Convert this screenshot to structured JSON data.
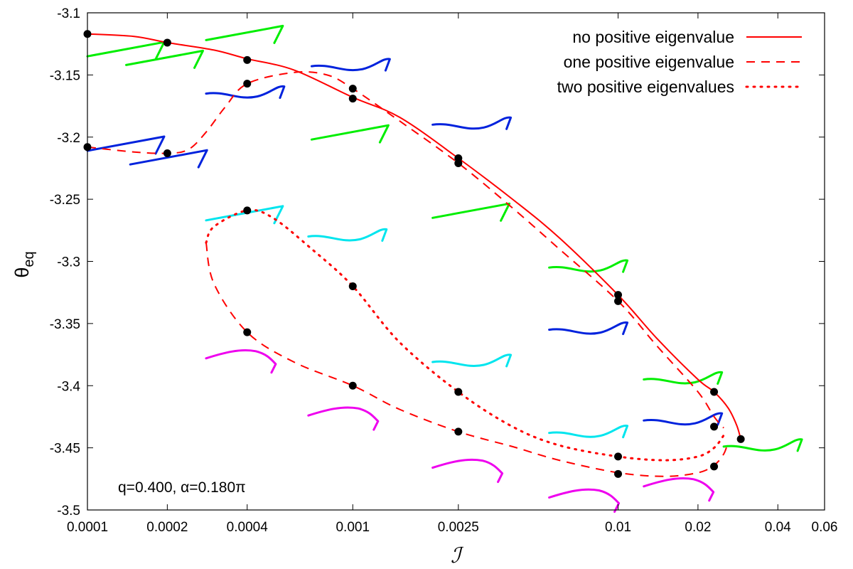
{
  "chart_data": {
    "type": "line",
    "x_scale": "log",
    "xlabel": "ℐ",
    "ylabel": {
      "main": "θ",
      "sub": "eq"
    },
    "xlim": [
      0.0001,
      0.06
    ],
    "ylim": [
      -3.5,
      -3.1
    ],
    "x_ticks": [
      0.0001,
      0.0002,
      0.0004,
      0.001,
      0.0025,
      0.01,
      0.02,
      0.04,
      0.06
    ],
    "x_tick_labels": [
      "0.0001",
      "0.0002",
      "0.0004",
      "0.001",
      "0.0025",
      "0.01",
      "0.02",
      "0.04",
      "0.06"
    ],
    "y_ticks": [
      -3.1,
      -3.15,
      -3.2,
      -3.25,
      -3.3,
      -3.35,
      -3.4,
      -3.45,
      -3.5
    ],
    "y_tick_labels": [
      "-3.1",
      "-3.15",
      "-3.2",
      "-3.25",
      "-3.3",
      "-3.35",
      "-3.4",
      "-3.45",
      "-3.5"
    ],
    "grid": false,
    "legend_position": "top-right",
    "annotation": "q=0.400, α=0.180π",
    "colors": {
      "curve": "#ff0000",
      "point": "#000000",
      "green": "#00ee00",
      "blue": "#0022dd",
      "cyan": "#00e5ee",
      "magenta": "#ee00ee"
    },
    "series": [
      {
        "name": "no positive eigenvalue",
        "style": "solid",
        "points": [
          [
            0.0001,
            -3.117
          ],
          [
            0.00015,
            -3.119
          ],
          [
            0.0002,
            -3.124
          ],
          [
            0.0003,
            -3.13
          ],
          [
            0.0004,
            -3.137
          ],
          [
            0.0006,
            -3.146
          ],
          [
            0.001,
            -3.168
          ],
          [
            0.0015,
            -3.184
          ],
          [
            0.0025,
            -3.217
          ],
          [
            0.004,
            -3.25
          ],
          [
            0.006,
            -3.281
          ],
          [
            0.01,
            -3.327
          ],
          [
            0.014,
            -3.362
          ],
          [
            0.02,
            -3.395
          ],
          [
            0.023,
            -3.405
          ],
          [
            0.026,
            -3.418
          ],
          [
            0.028,
            -3.432
          ],
          [
            0.029,
            -3.443
          ]
        ]
      },
      {
        "name": "one positive eigenvalue",
        "style": "dashed",
        "points": [
          [
            0.0001,
            -3.208
          ],
          [
            0.00015,
            -3.212
          ],
          [
            0.0002,
            -3.213
          ],
          [
            0.00024,
            -3.21
          ],
          [
            0.00028,
            -3.196
          ],
          [
            0.00033,
            -3.176
          ],
          [
            0.0004,
            -3.157
          ],
          [
            0.0006,
            -3.148
          ],
          [
            0.0008,
            -3.15
          ],
          [
            0.001,
            -3.161
          ],
          [
            0.0015,
            -3.187
          ],
          [
            0.0025,
            -3.221
          ],
          [
            0.004,
            -3.257
          ],
          [
            0.006,
            -3.29
          ],
          [
            0.01,
            -3.332
          ],
          [
            0.014,
            -3.368
          ],
          [
            0.02,
            -3.405
          ],
          [
            0.023,
            -3.425
          ],
          [
            0.025,
            -3.434
          ]
        ]
      },
      {
        "name": "",
        "style": "dashed",
        "points": [
          [
            0.00028,
            -3.285
          ],
          [
            0.0003,
            -3.318
          ],
          [
            0.0004,
            -3.357
          ],
          [
            0.0006,
            -3.381
          ],
          [
            0.001,
            -3.4
          ],
          [
            0.0015,
            -3.419
          ],
          [
            0.0025,
            -3.437
          ],
          [
            0.004,
            -3.449
          ],
          [
            0.006,
            -3.46
          ],
          [
            0.01,
            -3.47
          ],
          [
            0.015,
            -3.473
          ],
          [
            0.02,
            -3.47
          ],
          [
            0.023,
            -3.464
          ],
          [
            0.025,
            -3.455
          ],
          [
            0.026,
            -3.445
          ]
        ]
      },
      {
        "name": "two positive eigenvalues",
        "style": "dotted",
        "points": [
          [
            0.00028,
            -3.285
          ],
          [
            0.0003,
            -3.272
          ],
          [
            0.0004,
            -3.259
          ],
          [
            0.0005,
            -3.265
          ],
          [
            0.0007,
            -3.29
          ],
          [
            0.001,
            -3.32
          ],
          [
            0.0015,
            -3.365
          ],
          [
            0.0025,
            -3.405
          ],
          [
            0.004,
            -3.433
          ],
          [
            0.006,
            -3.448
          ],
          [
            0.01,
            -3.457
          ],
          [
            0.015,
            -3.46
          ],
          [
            0.02,
            -3.457
          ],
          [
            0.023,
            -3.45
          ],
          [
            0.025,
            -3.44
          ]
        ]
      }
    ],
    "markers": [
      [
        0.0001,
        -3.117
      ],
      [
        0.0002,
        -3.124
      ],
      [
        0.0004,
        -3.138
      ],
      [
        0.0004,
        -3.157
      ],
      [
        0.0001,
        -3.208
      ],
      [
        0.0002,
        -3.213
      ],
      [
        0.001,
        -3.161
      ],
      [
        0.001,
        -3.169
      ],
      [
        0.0025,
        -3.217
      ],
      [
        0.0025,
        -3.221
      ],
      [
        0.0004,
        -3.259
      ],
      [
        0.001,
        -3.32
      ],
      [
        0.0004,
        -3.357
      ],
      [
        0.001,
        -3.4
      ],
      [
        0.0025,
        -3.405
      ],
      [
        0.0025,
        -3.437
      ],
      [
        0.01,
        -3.327
      ],
      [
        0.01,
        -3.332
      ],
      [
        0.023,
        -3.405
      ],
      [
        0.023,
        -3.433
      ],
      [
        0.023,
        -3.465
      ],
      [
        0.01,
        -3.457
      ],
      [
        0.01,
        -3.471
      ],
      [
        0.029,
        -3.443
      ]
    ],
    "insets": [
      {
        "color": "green",
        "x": 0.0001,
        "y": -3.135,
        "shape": "kink"
      },
      {
        "color": "green",
        "x": 0.00014,
        "y": -3.142,
        "shape": "kink"
      },
      {
        "color": "green",
        "x": 0.00028,
        "y": -3.122,
        "shape": "kink"
      },
      {
        "color": "green",
        "x": 0.0007,
        "y": -3.202,
        "shape": "kink"
      },
      {
        "color": "green",
        "x": 0.002,
        "y": -3.265,
        "shape": "kink"
      },
      {
        "color": "green",
        "x": 0.0055,
        "y": -3.305,
        "shape": "wave"
      },
      {
        "color": "green",
        "x": 0.0125,
        "y": -3.395,
        "shape": "wave"
      },
      {
        "color": "green",
        "x": 0.025,
        "y": -3.449,
        "shape": "wave"
      },
      {
        "color": "blue",
        "x": 0.0007,
        "y": -3.143,
        "shape": "wave"
      },
      {
        "color": "blue",
        "x": 0.00028,
        "y": -3.165,
        "shape": "wave"
      },
      {
        "color": "blue",
        "x": 0.0001,
        "y": -3.211,
        "shape": "kink"
      },
      {
        "color": "blue",
        "x": 0.000145,
        "y": -3.222,
        "shape": "kink"
      },
      {
        "color": "blue",
        "x": 0.002,
        "y": -3.19,
        "shape": "wave"
      },
      {
        "color": "blue",
        "x": 0.0055,
        "y": -3.355,
        "shape": "wave"
      },
      {
        "color": "blue",
        "x": 0.0125,
        "y": -3.428,
        "shape": "wave"
      },
      {
        "color": "cyan",
        "x": 0.00028,
        "y": -3.267,
        "shape": "kink"
      },
      {
        "color": "cyan",
        "x": 0.00068,
        "y": -3.28,
        "shape": "wave"
      },
      {
        "color": "cyan",
        "x": 0.002,
        "y": -3.381,
        "shape": "wave"
      },
      {
        "color": "cyan",
        "x": 0.0055,
        "y": -3.438,
        "shape": "wave"
      },
      {
        "color": "magenta",
        "x": 0.00028,
        "y": -3.378,
        "shape": "hook"
      },
      {
        "color": "magenta",
        "x": 0.00068,
        "y": -3.424,
        "shape": "hook"
      },
      {
        "color": "magenta",
        "x": 0.002,
        "y": -3.466,
        "shape": "hook"
      },
      {
        "color": "magenta",
        "x": 0.0055,
        "y": -3.49,
        "shape": "hook"
      },
      {
        "color": "magenta",
        "x": 0.0125,
        "y": -3.481,
        "shape": "hook"
      }
    ]
  }
}
